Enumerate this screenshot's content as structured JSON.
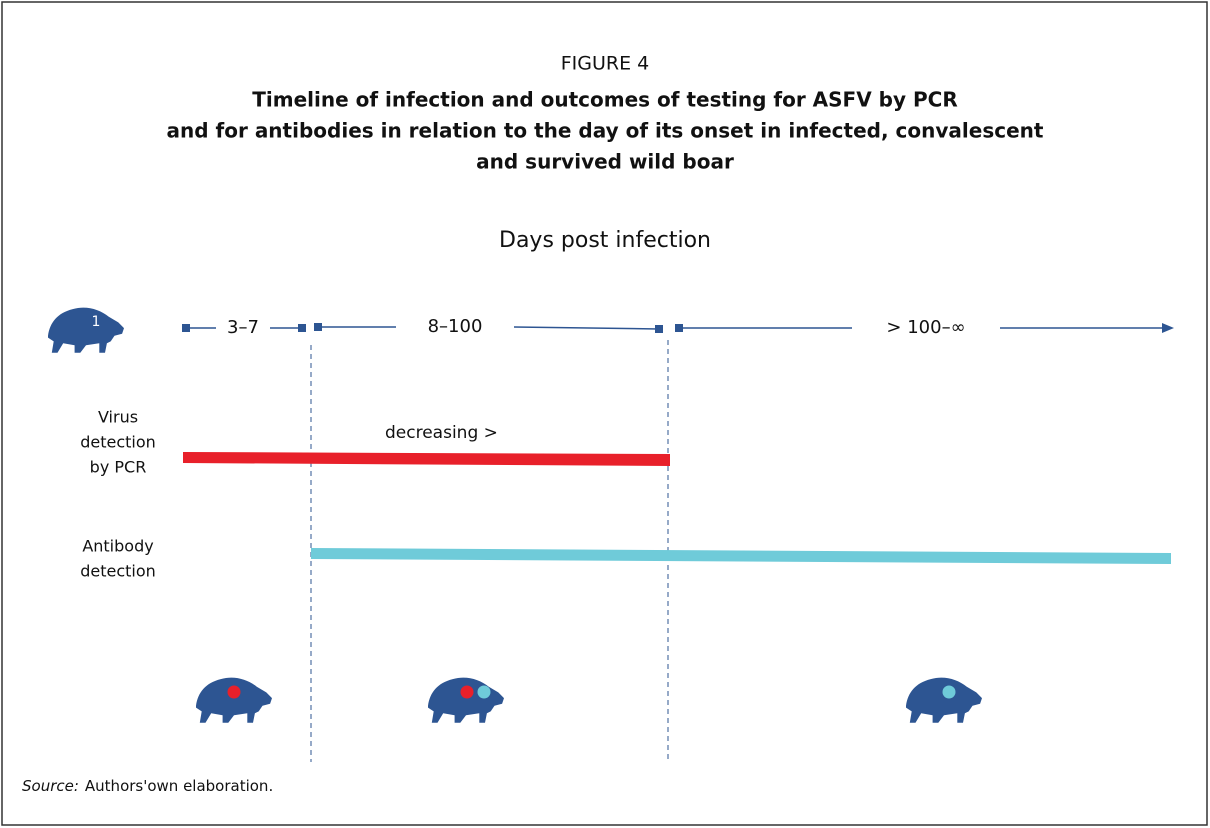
{
  "figure": {
    "label": "FIGURE 4",
    "title_lines": [
      "Timeline of infection and outcomes of testing for ASFV by PCR",
      "and for antibodies in relation to the day of its onset in infected, convalescent",
      "and survived wild boar"
    ],
    "axis_title": "Days post infection",
    "icon_label": "1",
    "periods": [
      "3–7",
      "8–100",
      "> 100–∞"
    ],
    "rows": [
      {
        "label_lines": [
          "Virus",
          "detection",
          "by PCR"
        ],
        "note": "decreasing >"
      },
      {
        "label_lines": [
          "Antibody",
          "detection"
        ]
      }
    ],
    "source": {
      "prefix": "Source:",
      "text": "Authors'own elaboration."
    }
  }
}
